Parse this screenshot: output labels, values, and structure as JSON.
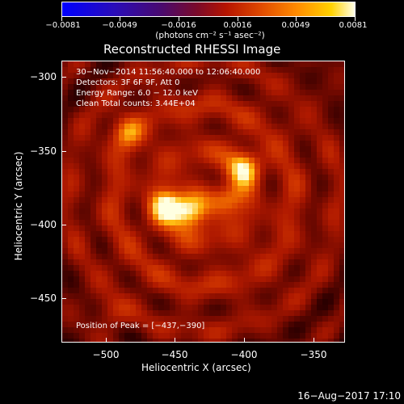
{
  "colorbar": {
    "ticks": [
      "−0.0081",
      "−0.0049",
      "−0.0016",
      "0.0016",
      "0.0049",
      "0.0081"
    ],
    "units": "(photons cm⁻² s⁻¹ asec⁻²)"
  },
  "title": "Reconstructed RHESSI Image",
  "info": {
    "line1": "30−Nov−2014 11:56:40.000 to 12:06:40.000",
    "line2": "Detectors: 3F 6F 9F, Att 0",
    "line3": "Energy Range: 6.0 − 12.0 keV",
    "line4": "Clean     Total counts: 3.44E+04"
  },
  "peak": "Position of Peak = [−437,−390]",
  "x_axis": {
    "label": "Heliocentric X (arcsec)",
    "ticks": [
      "−500",
      "−450",
      "−400",
      "−350"
    ]
  },
  "y_axis": {
    "label": "Heliocentric Y (arcsec)",
    "ticks": [
      "−300",
      "−350",
      "−400",
      "−450"
    ]
  },
  "footer": {
    "timestamp": "16−Aug−2017 17:10"
  },
  "sources": [
    {
      "x": -437,
      "y": -390,
      "intensity": 1.0
    },
    {
      "x": -453,
      "y": -386,
      "intensity": 0.85
    },
    {
      "x": -410,
      "y": -382,
      "intensity": 0.6
    },
    {
      "x": -398,
      "y": -360,
      "intensity": 0.8
    },
    {
      "x": -483,
      "y": -336,
      "intensity": 0.55
    },
    {
      "x": -495,
      "y": -460,
      "intensity": 0.3
    }
  ]
}
